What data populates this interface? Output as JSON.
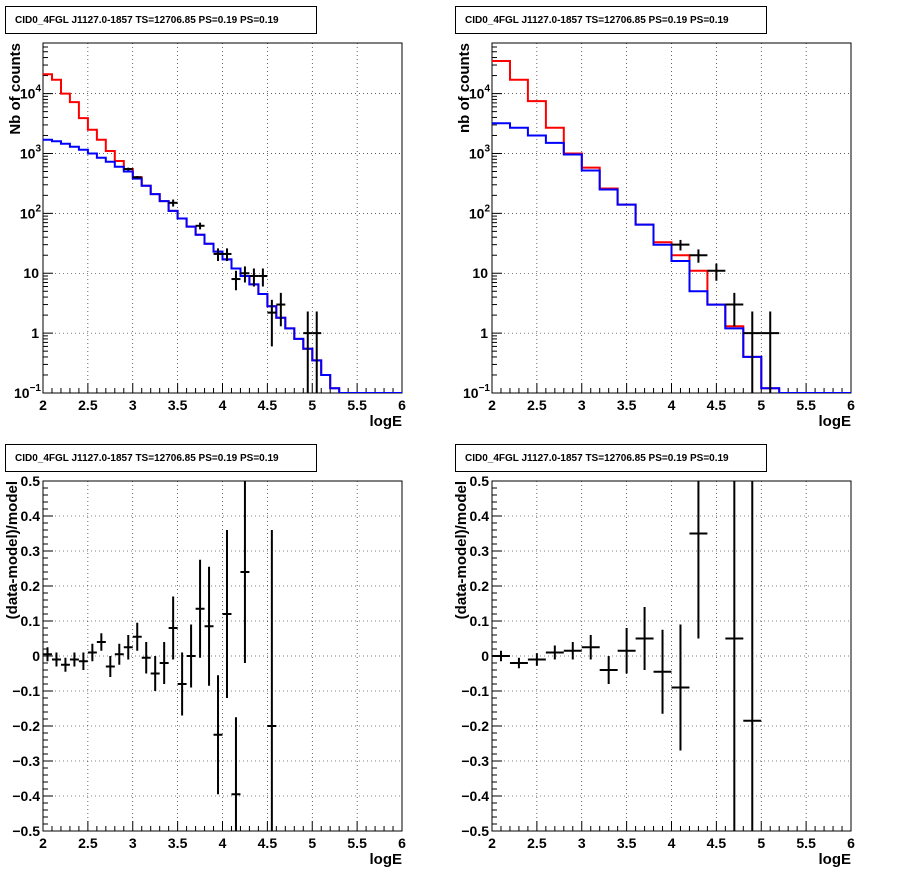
{
  "chart_data": [
    {
      "type": "line",
      "title": "CID0_4FGL J1127.0-1857 TS=12706.85 PS=0.19 PS=0.19",
      "xlabel": "logE",
      "ylabel": "Nb of counts",
      "xlim": [
        2,
        6
      ],
      "ylim": [
        0.1,
        70000
      ],
      "ylog": true,
      "grid": true,
      "xticks": [
        "2",
        "2.5",
        "3",
        "3.5",
        "4",
        "4.5",
        "5",
        "5.5",
        "6"
      ],
      "yticks": [
        {
          "v": 0.1,
          "t": "10",
          "sup": "−1"
        },
        {
          "v": 1,
          "t": "1"
        },
        {
          "v": 10,
          "t": "10"
        },
        {
          "v": 100,
          "t": "10",
          "sup": "2"
        },
        {
          "v": 1000,
          "t": "10",
          "sup": "3"
        },
        {
          "v": 10000,
          "t": "10",
          "sup": "4"
        }
      ],
      "bin_edges": [
        2.0,
        2.1,
        2.2,
        2.3,
        2.4,
        2.5,
        2.6,
        2.7,
        2.8,
        2.9,
        3.0,
        3.1,
        3.2,
        3.3,
        3.4,
        3.5,
        3.6,
        3.7,
        3.8,
        3.9,
        4.0,
        4.1,
        4.2,
        4.3,
        4.4,
        4.5,
        4.6,
        4.7,
        4.8,
        4.9,
        5.0,
        5.1,
        5.2,
        5.3,
        5.4,
        5.5,
        5.6,
        5.7,
        5.8,
        5.9,
        6.0
      ],
      "series": [
        {
          "color": "#ff0000",
          "values": [
            21000,
            17000,
            10000,
            7200,
            3900,
            2500,
            1700,
            1100,
            750,
            550,
            400,
            290,
            210,
            160,
            110,
            82,
            60,
            44,
            31,
            23,
            17,
            12,
            9,
            6.5,
            4.5,
            2.8,
            1.8,
            1.2,
            0.8,
            0.55,
            0.35,
            0.2,
            0.12,
            0.1,
            0.1,
            0.1,
            0.1,
            0.1,
            0.1,
            0.1
          ]
        },
        {
          "color": "#0000ff",
          "values": [
            1700,
            1600,
            1450,
            1300,
            1150,
            1000,
            850,
            730,
            600,
            500,
            380,
            290,
            210,
            160,
            110,
            82,
            60,
            44,
            31,
            23,
            17,
            12,
            9,
            6.5,
            4.5,
            2.8,
            1.8,
            1.2,
            0.8,
            0.55,
            0.35,
            0.2,
            0.12,
            0.1,
            0.1,
            0.1,
            0.1,
            0.1,
            0.1,
            0.1
          ]
        }
      ],
      "points": [
        {
          "x": 2.95,
          "y": 550,
          "ylo": 520,
          "yhi": 580
        },
        {
          "x": 3.05,
          "y": 400,
          "ylo": 380,
          "yhi": 420
        },
        {
          "x": 3.45,
          "y": 150,
          "ylo": 130,
          "yhi": 170
        },
        {
          "x": 3.75,
          "y": 62,
          "ylo": 54,
          "yhi": 70
        },
        {
          "x": 3.95,
          "y": 21,
          "ylo": 16,
          "yhi": 26
        },
        {
          "x": 4.05,
          "y": 21,
          "ylo": 16,
          "yhi": 26
        },
        {
          "x": 4.15,
          "y": 8,
          "ylo": 5.2,
          "yhi": 11
        },
        {
          "x": 4.25,
          "y": 10,
          "ylo": 7,
          "yhi": 13
        },
        {
          "x": 4.35,
          "y": 9,
          "ylo": 6,
          "yhi": 12
        },
        {
          "x": 4.45,
          "y": 9,
          "ylo": 6,
          "yhi": 12
        },
        {
          "x": 4.55,
          "y": 2.2,
          "ylo": 0.6,
          "yhi": 3.6
        },
        {
          "x": 4.65,
          "y": 3,
          "ylo": 1.3,
          "yhi": 4.7
        },
        {
          "x": 4.95,
          "y": 1,
          "ylo": 0.1,
          "yhi": 2.3
        },
        {
          "x": 5.05,
          "y": 1,
          "ylo": 0.1,
          "yhi": 2.3
        }
      ]
    },
    {
      "type": "line",
      "title": "CID0_4FGL J1127.0-1857 TS=12706.85 PS=0.19 PS=0.19",
      "xlabel": "logE",
      "ylabel": "nb of counts",
      "xlim": [
        2,
        6
      ],
      "ylim": [
        0.1,
        70000
      ],
      "ylog": true,
      "grid": true,
      "xticks": [
        "2",
        "2.5",
        "3",
        "3.5",
        "4",
        "4.5",
        "5",
        "5.5",
        "6"
      ],
      "yticks": [
        {
          "v": 0.1,
          "t": "10",
          "sup": "−1"
        },
        {
          "v": 1,
          "t": "1"
        },
        {
          "v": 10,
          "t": "10"
        },
        {
          "v": 100,
          "t": "10",
          "sup": "2"
        },
        {
          "v": 1000,
          "t": "10",
          "sup": "3"
        },
        {
          "v": 10000,
          "t": "10",
          "sup": "4"
        }
      ],
      "bin_edges": [
        2.0,
        2.2,
        2.4,
        2.6,
        2.8,
        3.0,
        3.2,
        3.4,
        3.6,
        3.8,
        4.0,
        4.2,
        4.4,
        4.6,
        4.8,
        5.0,
        5.2,
        5.4,
        5.6,
        5.8,
        6.0
      ],
      "series": [
        {
          "color": "#ff0000",
          "values": [
            35000,
            17000,
            7500,
            2700,
            1000,
            580,
            260,
            140,
            65,
            33,
            20,
            11,
            3,
            1.3,
            0.4,
            0.12,
            0.1,
            0.1,
            0.1,
            0.1
          ]
        },
        {
          "color": "#0000ff",
          "values": [
            3200,
            2700,
            2000,
            1500,
            960,
            520,
            250,
            140,
            65,
            30,
            16,
            5,
            3,
            1.2,
            0.4,
            0.12,
            0.1,
            0.1,
            0.1,
            0.1
          ]
        }
      ],
      "points": [
        {
          "x": 4.1,
          "y": 30,
          "ylo": 24,
          "yhi": 36
        },
        {
          "x": 4.3,
          "y": 20,
          "ylo": 15,
          "yhi": 25
        },
        {
          "x": 4.5,
          "y": 11,
          "ylo": 7.5,
          "yhi": 14.5
        },
        {
          "x": 4.7,
          "y": 3,
          "ylo": 1.3,
          "yhi": 4.7
        },
        {
          "x": 4.9,
          "y": 1,
          "ylo": 0.1,
          "yhi": 2.3
        },
        {
          "x": 5.1,
          "y": 1,
          "ylo": 0.1,
          "yhi": 2.3
        }
      ]
    },
    {
      "type": "scatter",
      "title": "CID0_4FGL J1127.0-1857 TS=12706.85 PS=0.19 PS=0.19",
      "xlabel": "logE",
      "ylabel": "(data-model)/model",
      "xlim": [
        2,
        6
      ],
      "ylim": [
        -0.5,
        0.5
      ],
      "grid": true,
      "xticks": [
        "2",
        "2.5",
        "3",
        "3.5",
        "4",
        "4.5",
        "5",
        "5.5",
        "6"
      ],
      "yticks": [
        "−0.5",
        "−0.4",
        "−0.3",
        "−0.2",
        "−0.1",
        "0",
        "0.1",
        "0.2",
        "0.3",
        "0.4",
        "0.5"
      ],
      "points": [
        {
          "x": 2.05,
          "y": 0.005,
          "err": 0.02
        },
        {
          "x": 2.15,
          "y": -0.01,
          "err": 0.02
        },
        {
          "x": 2.25,
          "y": -0.025,
          "err": 0.02
        },
        {
          "x": 2.35,
          "y": -0.01,
          "err": 0.02
        },
        {
          "x": 2.45,
          "y": -0.015,
          "err": 0.025
        },
        {
          "x": 2.55,
          "y": 0.01,
          "err": 0.025
        },
        {
          "x": 2.65,
          "y": 0.04,
          "err": 0.025
        },
        {
          "x": 2.75,
          "y": -0.03,
          "err": 0.03
        },
        {
          "x": 2.85,
          "y": 0.005,
          "err": 0.03
        },
        {
          "x": 2.95,
          "y": 0.025,
          "err": 0.035
        },
        {
          "x": 3.05,
          "y": 0.055,
          "err": 0.04
        },
        {
          "x": 3.15,
          "y": -0.005,
          "err": 0.045
        },
        {
          "x": 3.25,
          "y": -0.05,
          "err": 0.05
        },
        {
          "x": 3.35,
          "y": -0.02,
          "err": 0.06
        },
        {
          "x": 3.45,
          "y": 0.08,
          "err": 0.09
        },
        {
          "x": 3.55,
          "y": -0.08,
          "err": 0.09
        },
        {
          "x": 3.65,
          "y": 0.0,
          "err": 0.09
        },
        {
          "x": 3.75,
          "y": 0.135,
          "err": 0.14
        },
        {
          "x": 3.85,
          "y": 0.085,
          "err": 0.17
        },
        {
          "x": 3.95,
          "y": -0.225,
          "err": 0.17
        },
        {
          "x": 4.05,
          "y": 0.12,
          "err": 0.24
        },
        {
          "x": 4.15,
          "y": -0.395,
          "err": 0.22
        },
        {
          "x": 4.25,
          "y": 0.24,
          "err": 0.26
        },
        {
          "x": 4.55,
          "y": -0.2,
          "err": 0.56
        }
      ]
    },
    {
      "type": "scatter",
      "title": "CID0_4FGL J1127.0-1857 TS=12706.85 PS=0.19 PS=0.19",
      "xlabel": "logE",
      "ylabel": "(data-model)/model",
      "xlim": [
        2,
        6
      ],
      "ylim": [
        -0.5,
        0.5
      ],
      "grid": true,
      "xticks": [
        "2",
        "2.5",
        "3",
        "3.5",
        "4",
        "4.5",
        "5",
        "5.5",
        "6"
      ],
      "yticks": [
        "−0.5",
        "−0.4",
        "−0.3",
        "−0.2",
        "−0.1",
        "0",
        "0.1",
        "0.2",
        "0.3",
        "0.4",
        "0.5"
      ],
      "points": [
        {
          "x": 2.1,
          "y": 0.0,
          "err": 0.015
        },
        {
          "x": 2.3,
          "y": -0.02,
          "err": 0.015
        },
        {
          "x": 2.5,
          "y": -0.01,
          "err": 0.018
        },
        {
          "x": 2.7,
          "y": 0.01,
          "err": 0.02
        },
        {
          "x": 2.9,
          "y": 0.015,
          "err": 0.025
        },
        {
          "x": 3.1,
          "y": 0.025,
          "err": 0.035
        },
        {
          "x": 3.3,
          "y": -0.04,
          "err": 0.04
        },
        {
          "x": 3.5,
          "y": 0.015,
          "err": 0.065
        },
        {
          "x": 3.7,
          "y": 0.05,
          "err": 0.09
        },
        {
          "x": 3.9,
          "y": -0.045,
          "err": 0.12
        },
        {
          "x": 4.1,
          "y": -0.09,
          "err": 0.18
        },
        {
          "x": 4.3,
          "y": 0.35,
          "err": 0.3
        },
        {
          "x": 4.7,
          "y": 0.05,
          "err": 0.6
        },
        {
          "x": 4.9,
          "y": -0.185,
          "err": 0.7
        }
      ]
    }
  ]
}
